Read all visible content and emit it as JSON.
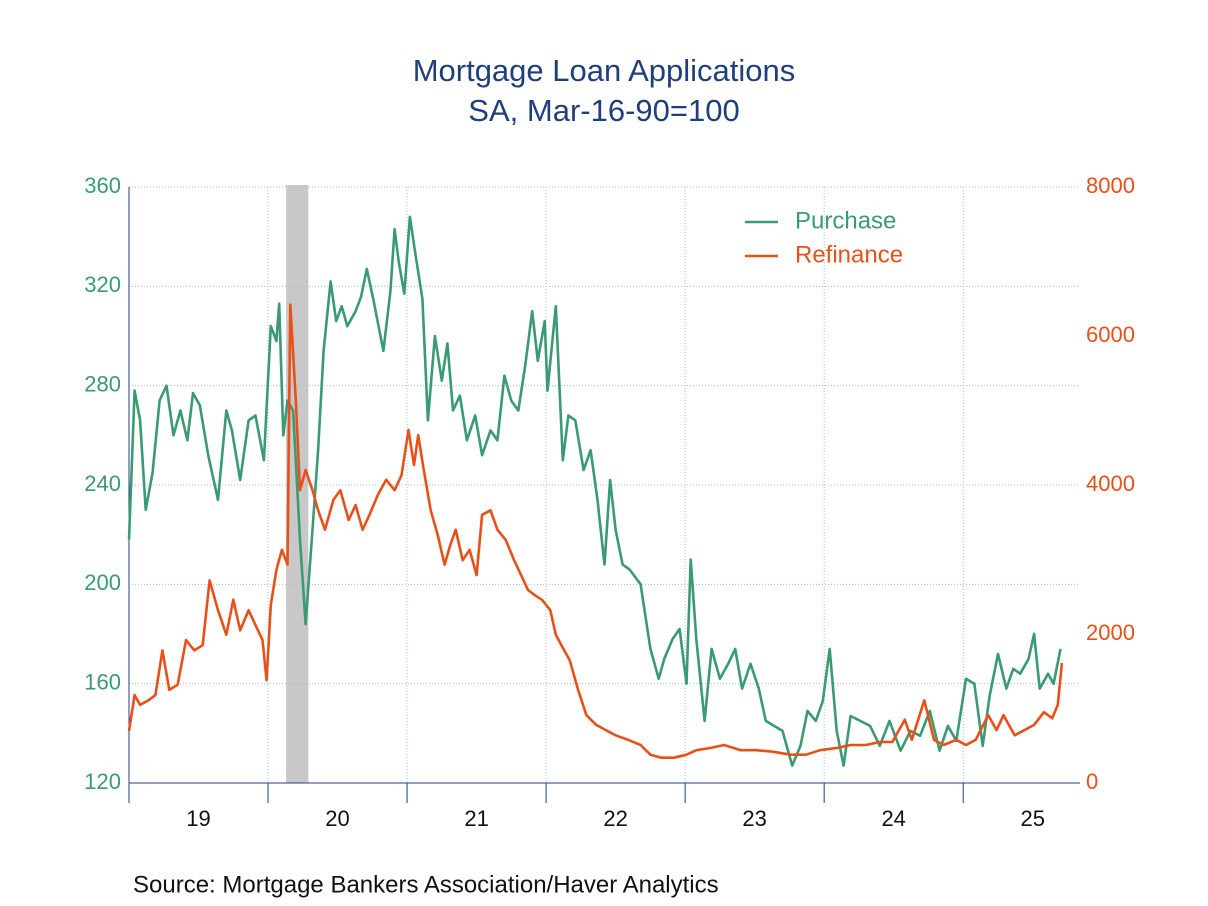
{
  "chart_data": {
    "type": "line",
    "title": "Mortgage Loan Applications",
    "subtitle": "SA, Mar-16-90=100",
    "source": "Source:  Mortgage Bankers Association/Haver Analytics",
    "xlim": [
      2019,
      2025.84
    ],
    "xticks": [
      {
        "value": 2019.5,
        "label": "19"
      },
      {
        "value": 2020.5,
        "label": "20"
      },
      {
        "value": 2021.5,
        "label": "21"
      },
      {
        "value": 2022.5,
        "label": "22"
      },
      {
        "value": 2023.5,
        "label": "23"
      },
      {
        "value": 2024.5,
        "label": "24"
      },
      {
        "value": 2025.5,
        "label": "25"
      }
    ],
    "ylim": [
      120,
      360
    ],
    "yticks": [
      120,
      160,
      200,
      240,
      280,
      320,
      360
    ],
    "y2lim": [
      0,
      8000
    ],
    "y2ticks": [
      0,
      2000,
      4000,
      6000,
      8000
    ],
    "grid": true,
    "legend": "upper right",
    "recession": [
      2020.13,
      2020.29
    ],
    "series": [
      {
        "name": "Purchase",
        "color": "#3a9a72",
        "axis": "y",
        "x": [
          2019.0,
          2019.04,
          2019.08,
          2019.12,
          2019.17,
          2019.22,
          2019.27,
          2019.32,
          2019.37,
          2019.42,
          2019.46,
          2019.51,
          2019.57,
          2019.64,
          2019.7,
          2019.74,
          2019.8,
          2019.86,
          2019.91,
          2019.97,
          2020.02,
          2020.06,
          2020.08,
          2020.11,
          2020.14,
          2020.18,
          2020.23,
          2020.27,
          2020.32,
          2020.36,
          2020.4,
          2020.45,
          2020.49,
          2020.53,
          2020.57,
          2020.63,
          2020.67,
          2020.71,
          2020.76,
          2020.83,
          2020.88,
          2020.91,
          2020.94,
          2020.98,
          2021.02,
          2021.06,
          2021.11,
          2021.15,
          2021.2,
          2021.25,
          2021.29,
          2021.33,
          2021.38,
          2021.43,
          2021.49,
          2021.54,
          2021.6,
          2021.65,
          2021.7,
          2021.75,
          2021.8,
          2021.85,
          2021.9,
          2021.94,
          2021.99,
          2022.01,
          2022.07,
          2022.12,
          2022.16,
          2022.21,
          2022.27,
          2022.32,
          2022.37,
          2022.42,
          2022.46,
          2022.5,
          2022.55,
          2022.6,
          2022.68,
          2022.75,
          2022.81,
          2022.85,
          2022.91,
          2022.96,
          2023.01,
          2023.04,
          2023.08,
          2023.14,
          2023.19,
          2023.25,
          2023.31,
          2023.36,
          2023.41,
          2023.47,
          2023.53,
          2023.58,
          2023.64,
          2023.7,
          2023.77,
          2023.83,
          2023.88,
          2023.94,
          2023.99,
          2024.04,
          2024.09,
          2024.14,
          2024.19,
          2024.26,
          2024.33,
          2024.4,
          2024.47,
          2024.55,
          2024.62,
          2024.69,
          2024.76,
          2024.83,
          2024.89,
          2024.95,
          2025.02,
          2025.08,
          2025.14,
          2025.19,
          2025.25,
          2025.31,
          2025.36,
          2025.41,
          2025.47,
          2025.51,
          2025.55,
          2025.61,
          2025.65,
          2025.7
        ],
        "values": [
          218,
          278,
          266,
          230,
          245,
          274,
          280,
          260,
          270,
          258,
          277,
          272,
          252,
          234,
          270,
          262,
          242,
          266,
          268,
          250,
          304,
          298,
          313,
          260,
          274,
          270,
          218,
          184,
          222,
          254,
          294,
          322,
          306,
          312,
          304,
          310,
          316,
          327,
          314,
          294,
          318,
          343,
          330,
          317,
          348,
          333,
          315,
          266,
          300,
          282,
          297,
          270,
          276,
          258,
          268,
          252,
          262,
          258,
          284,
          274,
          270,
          288,
          310,
          290,
          306,
          278,
          312,
          250,
          268,
          266,
          246,
          254,
          234,
          208,
          242,
          222,
          208,
          206,
          200,
          174,
          162,
          170,
          178,
          182,
          160,
          210,
          178,
          145,
          174,
          162,
          168,
          174,
          158,
          168,
          158,
          145,
          143,
          141,
          127,
          135,
          149,
          145,
          153,
          174,
          141,
          127,
          147,
          145,
          143,
          135,
          145,
          133,
          141,
          139,
          149,
          133,
          143,
          137,
          162,
          160,
          135,
          155,
          172,
          158,
          166,
          164,
          170,
          180,
          158,
          164,
          160,
          174
        ]
      },
      {
        "name": "Refinance",
        "color": "#e8501a",
        "axis": "y2",
        "x": [
          2019.0,
          2019.04,
          2019.08,
          2019.14,
          2019.19,
          2019.24,
          2019.29,
          2019.35,
          2019.41,
          2019.47,
          2019.53,
          2019.58,
          2019.64,
          2019.7,
          2019.75,
          2019.8,
          2019.86,
          2019.91,
          2019.96,
          2019.99,
          2020.02,
          2020.06,
          2020.1,
          2020.14,
          2020.16,
          2020.2,
          2020.23,
          2020.27,
          2020.32,
          2020.36,
          2020.41,
          2020.47,
          2020.52,
          2020.58,
          2020.63,
          2020.68,
          2020.73,
          2020.79,
          2020.85,
          2020.91,
          2020.96,
          2021.01,
          2021.05,
          2021.08,
          2021.12,
          2021.17,
          2021.22,
          2021.27,
          2021.31,
          2021.35,
          2021.4,
          2021.45,
          2021.5,
          2021.54,
          2021.6,
          2021.65,
          2021.71,
          2021.77,
          2021.82,
          2021.87,
          2021.92,
          2021.97,
          2022.03,
          2022.07,
          2022.13,
          2022.17,
          2022.23,
          2022.29,
          2022.36,
          2022.43,
          2022.5,
          2022.59,
          2022.68,
          2022.75,
          2022.83,
          2022.92,
          2023.01,
          2023.08,
          2023.18,
          2023.28,
          2023.4,
          2023.51,
          2023.63,
          2023.76,
          2023.87,
          2023.97,
          2024.09,
          2024.19,
          2024.3,
          2024.4,
          2024.49,
          2024.58,
          2024.63,
          2024.72,
          2024.79,
          2024.86,
          2024.95,
          2025.02,
          2025.09,
          2025.18,
          2025.24,
          2025.29,
          2025.37,
          2025.44,
          2025.51,
          2025.58,
          2025.64,
          2025.68,
          2025.71
        ],
        "values": [
          700,
          1180,
          1050,
          1110,
          1180,
          1780,
          1250,
          1320,
          1920,
          1780,
          1850,
          2720,
          2320,
          1990,
          2460,
          2050,
          2320,
          2120,
          1920,
          1380,
          2390,
          2860,
          3130,
          2930,
          6420,
          5140,
          3930,
          4200,
          3930,
          3660,
          3400,
          3800,
          3930,
          3530,
          3730,
          3400,
          3600,
          3870,
          4070,
          3930,
          4130,
          4740,
          4270,
          4670,
          4200,
          3660,
          3330,
          2930,
          3190,
          3400,
          2990,
          3130,
          2790,
          3600,
          3660,
          3400,
          3260,
          2990,
          2790,
          2590,
          2520,
          2460,
          2320,
          1990,
          1780,
          1650,
          1250,
          910,
          780,
          710,
          640,
          580,
          510,
          380,
          340,
          340,
          380,
          440,
          470,
          510,
          440,
          440,
          420,
          380,
          380,
          440,
          470,
          510,
          510,
          550,
          550,
          850,
          580,
          1110,
          580,
          510,
          580,
          510,
          580,
          910,
          710,
          910,
          640,
          710,
          780,
          950,
          870,
          1050,
          1610
        ]
      }
    ]
  }
}
